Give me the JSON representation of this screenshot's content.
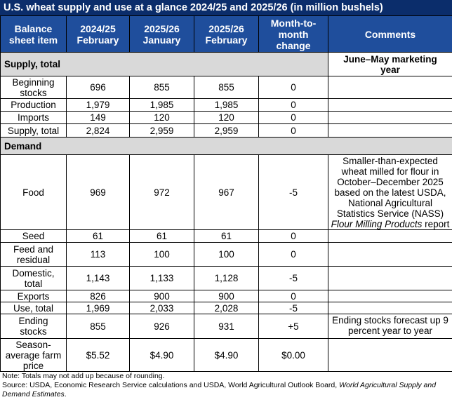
{
  "title": "U.S. wheat supply and use at a glance 2024/25 and 2025/26 (in million bushels)",
  "header": {
    "col1": [
      "Balance",
      "sheet item"
    ],
    "col2": [
      "2024/25",
      "February"
    ],
    "col3": [
      "2025/26",
      "January"
    ],
    "col4": [
      "2025/26",
      "February"
    ],
    "col5": [
      "Month-to-",
      "month",
      "change"
    ],
    "col6": "Comments"
  },
  "supply_section": {
    "label": "Supply, total",
    "note": [
      "June–May marketing",
      "year"
    ]
  },
  "supply_rows": [
    {
      "item": [
        "Beginning",
        "stocks"
      ],
      "v1": "696",
      "v2": "855",
      "v3": "855",
      "change": "0",
      "comment": ""
    },
    {
      "item": [
        "Production"
      ],
      "v1": "1,979",
      "v2": "1,985",
      "v3": "1,985",
      "change": "0",
      "comment": ""
    },
    {
      "item": [
        "Imports"
      ],
      "v1": "149",
      "v2": "120",
      "v3": "120",
      "change": "0",
      "comment": ""
    },
    {
      "item": [
        "Supply, total"
      ],
      "v1": "2,824",
      "v2": "2,959",
      "v3": "2,959",
      "change": "0",
      "comment": ""
    }
  ],
  "demand_section": {
    "label": "Demand"
  },
  "food_row": {
    "item": "Food",
    "v1": "969",
    "v2": "972",
    "v3": "967",
    "change": "-5",
    "comment_lines": [
      "Smaller-than-expected",
      "wheat milled for flour in",
      "October–December 2025",
      "based on the latest USDA,",
      "National Agricultural",
      "Statistics Service (NASS)"
    ],
    "comment_italic": "Flour Milling Products",
    "comment_tail": "report"
  },
  "demand_rows": [
    {
      "item": [
        "Seed"
      ],
      "v1": "61",
      "v2": "61",
      "v3": "61",
      "change": "0"
    },
    {
      "item": [
        "Feed and",
        "residual"
      ],
      "v1": "113",
      "v2": "100",
      "v3": "100",
      "change": "0"
    },
    {
      "item": [
        "Domestic,",
        "total"
      ],
      "v1": "1,143",
      "v2": "1,133",
      "v3": "1,128",
      "change": "-5"
    },
    {
      "item": [
        "Exports"
      ],
      "v1": "826",
      "v2": "900",
      "v3": "900",
      "change": "0"
    },
    {
      "item": [
        "Use, total"
      ],
      "v1": "1,969",
      "v2": "2,033",
      "v3": "2,028",
      "change": "-5"
    }
  ],
  "ending_row": {
    "item": [
      "Ending",
      "stocks"
    ],
    "v1": "855",
    "v2": "926",
    "v3": "931",
    "change": "+5",
    "comment_lines": [
      "Ending stocks forecast up 9",
      "percent year to year"
    ]
  },
  "price_row": {
    "item": [
      "Season-",
      "average farm",
      "price"
    ],
    "v1": "$5.52",
    "v2": "$4.90",
    "v3": "$4.90",
    "change": "$0.00"
  },
  "notes": {
    "note": "Note: Totals may not add up because of rounding.",
    "source_prefix": "Source: USDA, Economic Research Service calculations and USDA, World Agricultural Outlook Board, ",
    "source_italic_1": "World Agricultural Supply and",
    "source_italic_2": "Demand Estimates",
    "source_end": "."
  }
}
